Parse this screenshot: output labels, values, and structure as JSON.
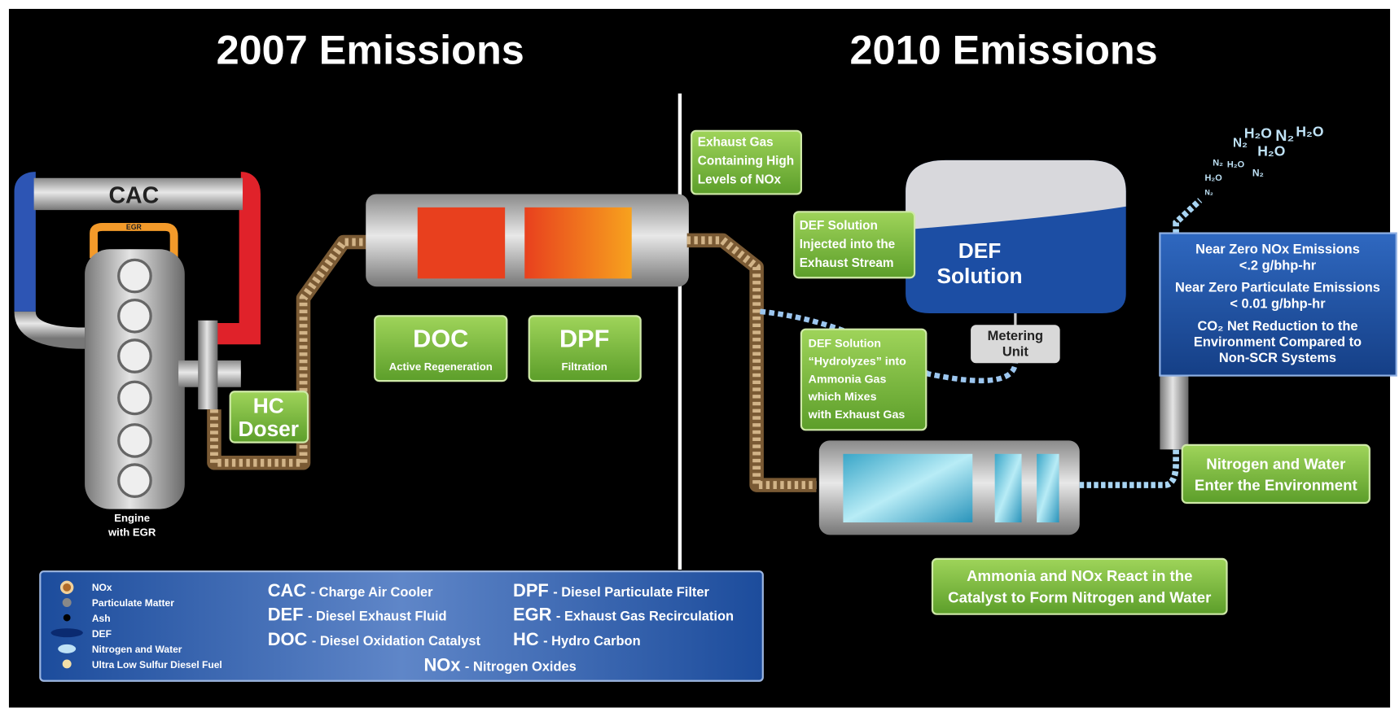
{
  "titles": [
    "2007 Emissions",
    "2010 Emissions"
  ],
  "engine": {
    "cac": "CAC",
    "egr": "EGR",
    "label": [
      "Engine",
      "with EGR"
    ]
  },
  "hc_doser": [
    "HC",
    "Doser"
  ],
  "doc": {
    "title": "DOC",
    "subtitle": "Active Regeneration"
  },
  "dpf": {
    "title": "DPF",
    "subtitle": "Filtration"
  },
  "exhaust_gas": [
    "Exhaust Gas",
    "Containing High",
    "Levels of NOx"
  ],
  "def_injected": [
    "DEF Solution",
    "Injected into the",
    "Exhaust Stream"
  ],
  "def_tank": [
    "DEF",
    "Solution"
  ],
  "metering_unit": [
    "Metering",
    "Unit"
  ],
  "hydrolyzes": [
    "DEF Solution",
    "“Hydrolyzes” into",
    "Ammonia Gas",
    "which Mixes",
    "with Exhaust Gas"
  ],
  "emissions_box": [
    "Near Zero NOx Emissions",
    "<.2 g/bhp-hr",
    "Near Zero Particulate Emissions",
    "< 0.01 g/bhp-hr",
    "CO₂ Net Reduction to the",
    "Environment Compared to",
    "Non-SCR Systems"
  ],
  "nitrogen_water": [
    "Nitrogen and Water",
    "Enter the Environment"
  ],
  "ammonia_react": [
    "Ammonia and NOx React in the",
    "Catalyst to Form Nitrogen and Water"
  ],
  "molecules": [
    "N₂",
    "H₂O",
    "N₂",
    "H₂O",
    "H₂O",
    "N₂",
    "H₂O",
    "N₂",
    "H₂O",
    "N₂"
  ],
  "legend": [
    "NOx",
    "Particulate Matter",
    "Ash",
    "DEF",
    "Nitrogen and Water",
    "Ultra Low Sulfur Diesel Fuel"
  ],
  "abbreviations": [
    {
      "abbr": "CAC",
      "meaning": "- Charge Air Cooler"
    },
    {
      "abbr": "DEF",
      "meaning": "- Diesel Exhaust Fluid"
    },
    {
      "abbr": "DOC",
      "meaning": "- Diesel Oxidation Catalyst"
    },
    {
      "abbr": "DPF",
      "meaning": "- Diesel Particulate Filter"
    },
    {
      "abbr": "EGR",
      "meaning": "- Exhaust Gas Recirculation"
    },
    {
      "abbr": "HC",
      "meaning": "- Hydro Carbon"
    },
    {
      "abbr": "NOx",
      "meaning": "- Nitrogen Oxides"
    }
  ]
}
